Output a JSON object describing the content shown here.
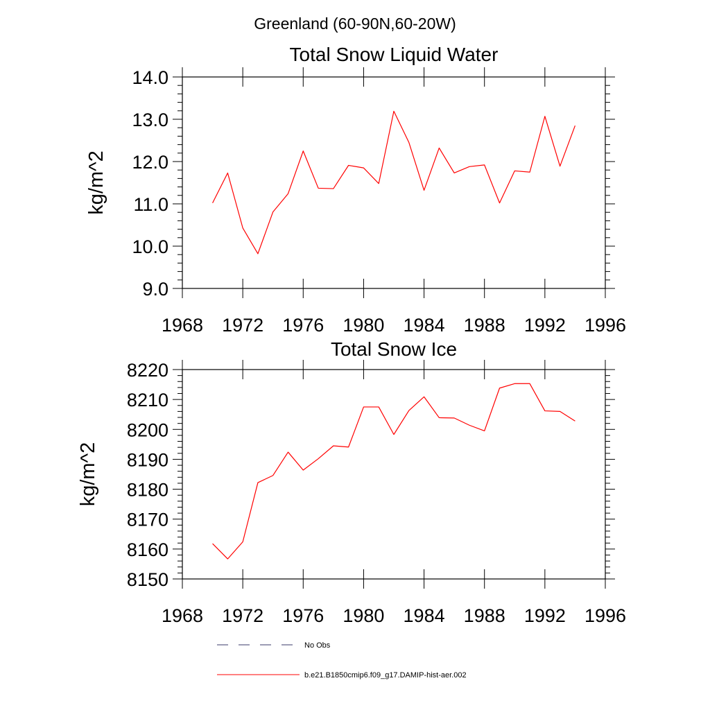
{
  "figure": {
    "suptitle": "Greenland (60-90N,60-20W)"
  },
  "legend": {
    "position": "bottom",
    "entries": [
      {
        "label": "No Obs",
        "color": "#3a3a6a",
        "dash": "dashed"
      },
      {
        "label": "b.e21.B1850cmip6.f09_g17.DAMIP-hist-aer.002",
        "color": "#ff0000",
        "dash": "solid"
      }
    ]
  },
  "chart_data": [
    {
      "type": "line",
      "title": "Total Snow Liquid Water",
      "ylabel": "kg/m^2",
      "xlabel": "",
      "xlim": [
        1968,
        1996
      ],
      "ylim": [
        9.0,
        14.0
      ],
      "xticks": [
        "1968",
        "1972",
        "1976",
        "1980",
        "1984",
        "1988",
        "1992",
        "1996"
      ],
      "yticks": [
        "9.0",
        "10.0",
        "11.0",
        "12.0",
        "13.0",
        "14.0"
      ],
      "x": [
        1970,
        1971,
        1972,
        1973,
        1974,
        1975,
        1976,
        1977,
        1978,
        1979,
        1980,
        1981,
        1982,
        1983,
        1984,
        1985,
        1986,
        1987,
        1988,
        1989,
        1990,
        1991,
        1992,
        1993,
        1994
      ],
      "series": [
        {
          "name": "b.e21.B1850cmip6.f09_g17.DAMIP-hist-aer.002",
          "color": "#ff0000",
          "values": [
            11.02,
            11.73,
            10.43,
            9.82,
            10.81,
            11.24,
            12.25,
            11.37,
            11.36,
            11.91,
            11.85,
            11.48,
            13.19,
            12.45,
            11.32,
            12.32,
            11.73,
            11.88,
            11.92,
            11.02,
            11.78,
            11.75,
            13.07,
            11.89,
            12.85
          ]
        }
      ],
      "grid": false
    },
    {
      "type": "line",
      "title": "Total Snow Ice",
      "ylabel": "kg/m^2",
      "xlabel": "",
      "xlim": [
        1968,
        1996
      ],
      "ylim": [
        8150,
        8220
      ],
      "xticks": [
        "1968",
        "1972",
        "1976",
        "1980",
        "1984",
        "1988",
        "1992",
        "1996"
      ],
      "yticks": [
        "8150",
        "8160",
        "8170",
        "8180",
        "8190",
        "8200",
        "8210",
        "8220"
      ],
      "x": [
        1970,
        1971,
        1972,
        1973,
        1974,
        1975,
        1976,
        1977,
        1978,
        1979,
        1980,
        1981,
        1982,
        1983,
        1984,
        1985,
        1986,
        1987,
        1988,
        1989,
        1990,
        1991,
        1992,
        1993,
        1994
      ],
      "series": [
        {
          "name": "b.e21.B1850cmip6.f09_g17.DAMIP-hist-aer.002",
          "color": "#ff0000",
          "values": [
            8161.8,
            8156.7,
            8162.4,
            8182.2,
            8184.6,
            8192.4,
            8186.4,
            8190.2,
            8194.5,
            8194.1,
            8207.5,
            8207.5,
            8198.3,
            8206.3,
            8210.9,
            8203.9,
            8203.8,
            8201.4,
            8199.5,
            8213.8,
            8215.3,
            8215.3,
            8206.2,
            8206.0,
            8202.8
          ]
        }
      ],
      "grid": false
    }
  ]
}
